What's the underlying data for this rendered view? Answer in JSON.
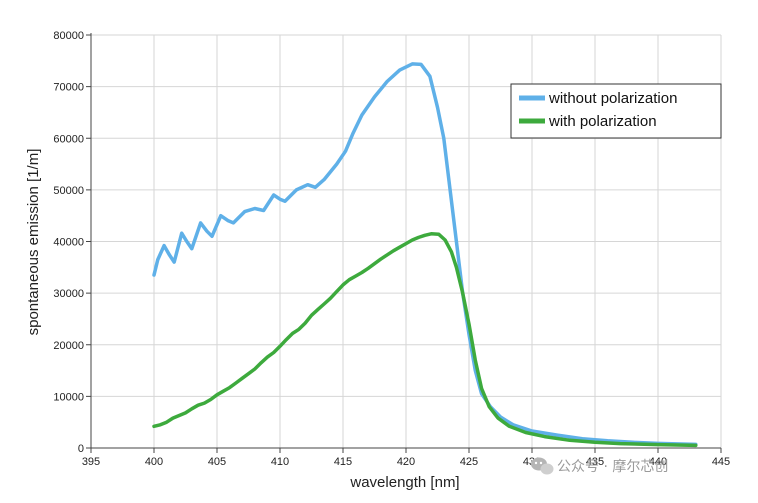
{
  "chart_data": {
    "type": "line",
    "title": "",
    "xlabel": "wavelength [nm]",
    "ylabel": "spontaneous emission [1/m]",
    "xlim": [
      395,
      445
    ],
    "ylim": [
      0,
      80000
    ],
    "xticks": [
      395,
      400,
      405,
      410,
      415,
      420,
      425,
      430,
      435,
      440,
      445
    ],
    "yticks": [
      0,
      10000,
      20000,
      30000,
      40000,
      50000,
      60000,
      70000,
      80000
    ],
    "grid": true,
    "legend_position": "top-right",
    "series": [
      {
        "name": "without polarization",
        "color": "#5fb0e8",
        "points": [
          [
            400,
            33500
          ],
          [
            400.3,
            36500
          ],
          [
            400.8,
            39200
          ],
          [
            401.2,
            37500
          ],
          [
            401.6,
            36000
          ],
          [
            402.2,
            41600
          ],
          [
            402.6,
            40000
          ],
          [
            403,
            38600
          ],
          [
            403.7,
            43600
          ],
          [
            404.2,
            42000
          ],
          [
            404.6,
            41000
          ],
          [
            405.3,
            45000
          ],
          [
            405.9,
            44000
          ],
          [
            406.3,
            43600
          ],
          [
            407.2,
            45800
          ],
          [
            408,
            46400
          ],
          [
            408.7,
            46000
          ],
          [
            409.5,
            49000
          ],
          [
            410,
            48200
          ],
          [
            410.4,
            47800
          ],
          [
            411.3,
            50000
          ],
          [
            412.2,
            51000
          ],
          [
            412.8,
            50500
          ],
          [
            413.5,
            52000
          ],
          [
            414.5,
            55000
          ],
          [
            415.2,
            57500
          ],
          [
            415.8,
            61000
          ],
          [
            416.5,
            64500
          ],
          [
            417.5,
            68000
          ],
          [
            418.5,
            71000
          ],
          [
            419.5,
            73200
          ],
          [
            420.5,
            74400
          ],
          [
            421.2,
            74300
          ],
          [
            421.9,
            72000
          ],
          [
            422.5,
            66000
          ],
          [
            423,
            60000
          ],
          [
            423.5,
            50000
          ],
          [
            424,
            40000
          ],
          [
            424.5,
            30000
          ],
          [
            425,
            22000
          ],
          [
            425.5,
            15000
          ],
          [
            426,
            10500
          ],
          [
            426.7,
            8000
          ],
          [
            427.5,
            6000
          ],
          [
            428.5,
            4500
          ],
          [
            430,
            3300
          ],
          [
            432,
            2500
          ],
          [
            434,
            1800
          ],
          [
            436,
            1400
          ],
          [
            438,
            1100
          ],
          [
            440,
            900
          ],
          [
            443,
            700
          ]
        ]
      },
      {
        "name": "with polarization",
        "color": "#3daa3d",
        "points": [
          [
            400,
            4200
          ],
          [
            400.5,
            4500
          ],
          [
            401,
            5000
          ],
          [
            401.5,
            5800
          ],
          [
            402,
            6300
          ],
          [
            402.5,
            6800
          ],
          [
            403,
            7600
          ],
          [
            403.5,
            8300
          ],
          [
            404,
            8700
          ],
          [
            404.5,
            9400
          ],
          [
            405,
            10300
          ],
          [
            405.5,
            11000
          ],
          [
            406,
            11700
          ],
          [
            406.5,
            12600
          ],
          [
            407,
            13500
          ],
          [
            407.5,
            14400
          ],
          [
            408,
            15300
          ],
          [
            408.5,
            16500
          ],
          [
            409,
            17600
          ],
          [
            409.5,
            18500
          ],
          [
            410,
            19700
          ],
          [
            410.5,
            21000
          ],
          [
            411,
            22200
          ],
          [
            411.5,
            23000
          ],
          [
            412,
            24200
          ],
          [
            412.5,
            25700
          ],
          [
            413,
            26800
          ],
          [
            413.5,
            27900
          ],
          [
            414,
            29000
          ],
          [
            414.5,
            30300
          ],
          [
            415,
            31600
          ],
          [
            415.5,
            32600
          ],
          [
            416,
            33300
          ],
          [
            416.5,
            34000
          ],
          [
            417,
            34800
          ],
          [
            417.5,
            35700
          ],
          [
            418,
            36600
          ],
          [
            418.5,
            37400
          ],
          [
            419,
            38200
          ],
          [
            419.5,
            38900
          ],
          [
            420,
            39600
          ],
          [
            420.5,
            40300
          ],
          [
            421,
            40800
          ],
          [
            421.5,
            41200
          ],
          [
            422,
            41500
          ],
          [
            422.6,
            41400
          ],
          [
            423.1,
            40300
          ],
          [
            423.6,
            38000
          ],
          [
            424,
            35000
          ],
          [
            424.5,
            30000
          ],
          [
            425,
            24000
          ],
          [
            425.5,
            17000
          ],
          [
            426,
            11500
          ],
          [
            426.6,
            8000
          ],
          [
            427.3,
            5800
          ],
          [
            428.2,
            4200
          ],
          [
            429.5,
            3000
          ],
          [
            431,
            2200
          ],
          [
            433,
            1500
          ],
          [
            435,
            1100
          ],
          [
            437,
            850
          ],
          [
            440,
            650
          ],
          [
            443,
            500
          ]
        ]
      }
    ]
  },
  "watermark": {
    "text": "公众号 · 摩尔芯创",
    "icon": "wechat-bubbles-icon"
  }
}
